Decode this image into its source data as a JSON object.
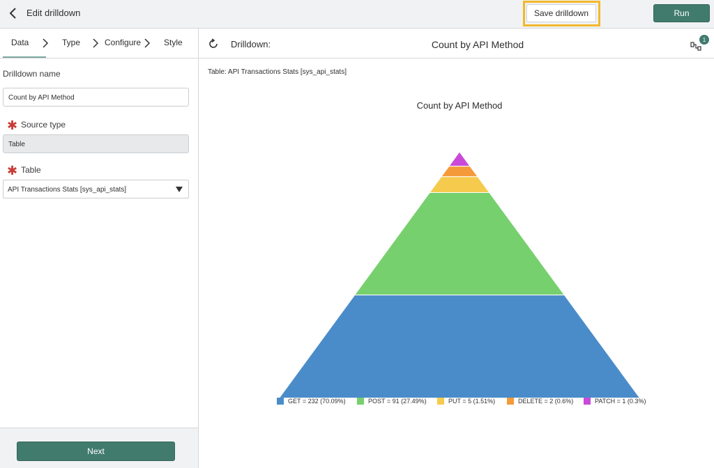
{
  "topbar": {
    "title": "Edit drilldown",
    "save_label": "Save drilldown",
    "run_label": "Run"
  },
  "steps": [
    {
      "label": "Data"
    },
    {
      "label": "Type"
    },
    {
      "label": "Configure"
    },
    {
      "label": "Style"
    }
  ],
  "form": {
    "name_label": "Drilldown name",
    "name_value": "Count by API Method",
    "source_type_label": "Source type",
    "source_type_value": "Table",
    "table_label": "Table",
    "table_value": "API Transactions Stats [sys_api_stats]"
  },
  "footer": {
    "next_label": "Next"
  },
  "preview": {
    "drilldown_label": "Drilldown:",
    "drilldown_title": "Count by API Method",
    "hierarchy_badge": "1",
    "table_caption": "Table: API Transactions Stats [sys_api_stats]"
  },
  "chart_data": {
    "type": "pyramid",
    "title": "Count by API Method",
    "categories": [
      "GET",
      "POST",
      "PUT",
      "DELETE",
      "PATCH"
    ],
    "values": [
      232,
      91,
      5,
      2,
      1
    ],
    "percents": [
      "70.09%",
      "27.49%",
      "1.51%",
      "0.6%",
      "0.3%"
    ],
    "colors": [
      "#4a8cc9",
      "#77d06e",
      "#f5cb4d",
      "#f59a3a",
      "#c94ad8"
    ],
    "legend": [
      "GET = 232 (70.09%)",
      "POST = 91 (27.49%)",
      "PUT = 5 (1.51%)",
      "DELETE = 2 (0.6%)",
      "PATCH = 1 (0.3%)"
    ],
    "legend_position": "bottom"
  }
}
